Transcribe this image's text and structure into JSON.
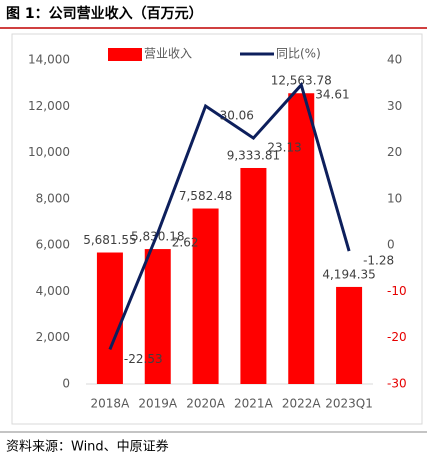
{
  "title": "图 1：公司营业收入（百万元）",
  "source": "资料来源：Wind、中原证券",
  "chart_data": {
    "type": "bar-line",
    "categories": [
      "2018A",
      "2019A",
      "2020A",
      "2021A",
      "2022A",
      "2023Q1"
    ],
    "series": [
      {
        "name": "营业收入",
        "type": "bar",
        "color": "#ff0000",
        "axis": "y",
        "values": [
          5681.55,
          5830.18,
          7582.48,
          9333.81,
          12563.78,
          4194.35
        ],
        "value_labels": [
          "5,681.55",
          "5,830.18",
          "7,582.48",
          "9,333.81",
          "12,563.78",
          "4,194.35"
        ]
      },
      {
        "name": "同比(%)",
        "type": "line",
        "color": "#0d1f5c",
        "axis": "y2",
        "values": [
          -22.53,
          2.62,
          30.06,
          23.13,
          34.61,
          -1.28
        ]
      }
    ],
    "ylim": [
      0,
      14000
    ],
    "yticks": [
      0,
      {
        "value": 2000,
        "label": "2,000"
      },
      {
        "value": 4000,
        "label": "4,000"
      },
      {
        "value": 6000,
        "label": "6,000"
      },
      {
        "value": 8000,
        "label": "8,000"
      },
      {
        "value": 10000,
        "label": "10,000"
      },
      {
        "value": 12000,
        "label": "12,000"
      },
      {
        "value": 14000,
        "label": "14,000"
      }
    ],
    "y2lim": [
      -30,
      40
    ],
    "y2ticks": [
      -30,
      -20,
      -10,
      0,
      10,
      20,
      30,
      40
    ],
    "negative_color": "#e60000",
    "legend": "top"
  }
}
